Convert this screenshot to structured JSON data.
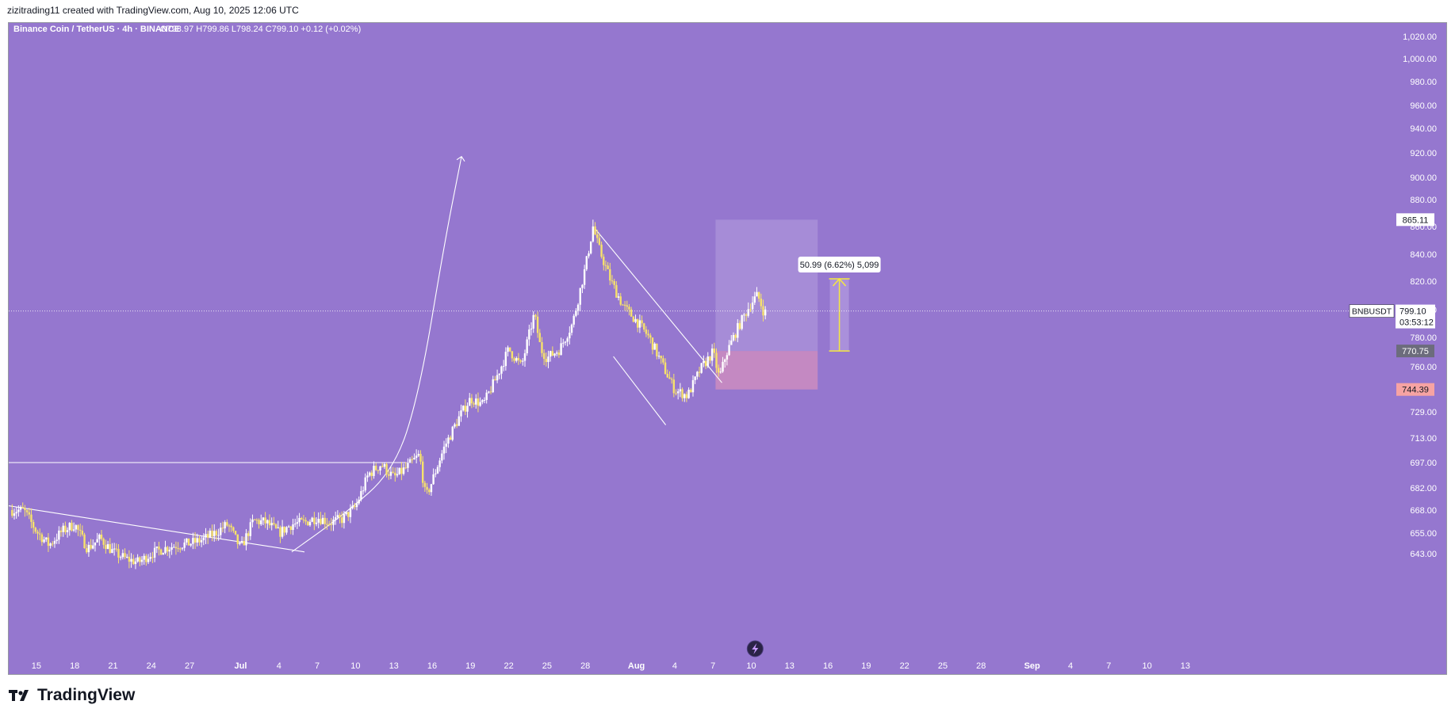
{
  "header": {
    "attribution": "zizitrading11 created with TradingView.com, Aug 10, 2025 12:06 UTC"
  },
  "colors": {
    "background": "#9577cf",
    "candle_up": "#ffffff",
    "candle_down": "#f7e26b",
    "projection_box": "#a98fd8",
    "profit_zone": "#b7a5e3",
    "stop_zone": "#c98bc0",
    "measure_arrow": "#f5e840",
    "stop_label": "#f7a3a3",
    "entry_label": "#6c6c7c"
  },
  "footer": {
    "brand": "TradingView",
    "logo_icon": "tradingview-logo-icon"
  },
  "chart_data": {
    "type": "candlestick",
    "symbol": "Binance Coin / TetherUS · 4h · BINANCE",
    "ohlc": {
      "O": "798.97",
      "H": "799.86",
      "L": "798.24",
      "C": "799.10",
      "change": "+0.12 (+0.02%)"
    },
    "y_axis_labels": [
      "1,020.00",
      "1,000.00",
      "980.00",
      "960.00",
      "940.00",
      "920.00",
      "900.00",
      "880.00",
      "860.00",
      "840.00",
      "820.00",
      "800.00",
      "780.00",
      "760.00",
      "729.00",
      "713.00",
      "697.00",
      "682.00",
      "668.00",
      "655.00",
      "643.00"
    ],
    "y_axis_values": [
      1020,
      1000,
      980,
      960,
      940,
      920,
      900,
      880,
      860,
      840,
      820,
      800,
      780,
      760,
      729,
      713,
      697,
      682,
      668,
      655,
      643
    ],
    "x_axis_labels": [
      "15",
      "18",
      "21",
      "24",
      "27",
      "Jul",
      "4",
      "7",
      "10",
      "13",
      "16",
      "19",
      "22",
      "25",
      "28",
      "Aug",
      "4",
      "7",
      "10",
      "13",
      "16",
      "19",
      "22",
      "25",
      "28",
      "Sep",
      "4",
      "7",
      "10",
      "13"
    ],
    "x_axis_days": [
      -16,
      -13,
      -10,
      -7,
      -4,
      0,
      3,
      6,
      9,
      12,
      15,
      18,
      21,
      24,
      27,
      31,
      34,
      37,
      40,
      43,
      46,
      49,
      52,
      55,
      58,
      62,
      65,
      68,
      71,
      74
    ],
    "price_path": [
      [
        -17,
        668
      ],
      [
        -16,
        656
      ],
      [
        -15,
        648
      ],
      [
        -14,
        656
      ],
      [
        -13,
        660
      ],
      [
        -12,
        646
      ],
      [
        -11,
        652
      ],
      [
        -10,
        644
      ],
      [
        -9,
        640
      ],
      [
        -8,
        638
      ],
      [
        -7,
        643
      ],
      [
        -6,
        646
      ],
      [
        -5,
        648
      ],
      [
        -4,
        649
      ],
      [
        -3,
        651
      ],
      [
        -2,
        655
      ],
      [
        -1,
        660
      ],
      [
        0,
        646
      ],
      [
        1,
        662
      ],
      [
        2,
        661
      ],
      [
        3,
        655
      ],
      [
        4,
        660
      ],
      [
        5,
        661
      ],
      [
        6,
        664
      ],
      [
        7,
        661
      ],
      [
        8,
        663
      ],
      [
        9,
        670
      ],
      [
        10,
        690
      ],
      [
        11,
        696
      ],
      [
        12,
        688
      ],
      [
        13,
        694
      ],
      [
        14,
        702
      ],
      [
        14.5,
        676
      ],
      [
        15,
        686
      ],
      [
        16,
        708
      ],
      [
        17,
        724
      ],
      [
        18,
        738
      ],
      [
        19,
        734
      ],
      [
        20,
        752
      ],
      [
        21,
        772
      ],
      [
        22,
        760
      ],
      [
        23,
        797
      ],
      [
        23.5,
        772
      ],
      [
        24,
        766
      ],
      [
        25,
        772
      ],
      [
        26,
        790
      ],
      [
        27,
        830
      ],
      [
        27.6,
        860
      ],
      [
        28,
        846
      ],
      [
        29,
        820
      ],
      [
        30,
        802
      ],
      [
        31,
        792
      ],
      [
        32,
        780
      ],
      [
        33,
        762
      ],
      [
        34,
        744
      ],
      [
        35,
        740
      ],
      [
        36,
        758
      ],
      [
        37,
        770
      ],
      [
        37.5,
        752
      ],
      [
        38,
        768
      ],
      [
        39,
        788
      ],
      [
        40,
        805
      ],
      [
        40.5,
        810
      ],
      [
        41,
        798
      ]
    ],
    "series": [
      {
        "name": "BNBUSDT",
        "last_value": "799.10",
        "countdown": "03:53:12"
      }
    ],
    "levels": [
      {
        "label": "865.11",
        "value": 865.11
      },
      {
        "label": "770.75",
        "value": 770.75
      },
      {
        "label": "744.39",
        "value": 744.39
      }
    ],
    "current_price": {
      "symbol_tag": "BNBUSDT",
      "value": "799.10",
      "timer": "03:53:12"
    },
    "position_tool": {
      "entry": 770.75,
      "target": 865.11,
      "stop": 744.39,
      "start_day": 37.2,
      "end_day": 45.2
    },
    "measure": {
      "label": "50.99 (6.62%) 5,099",
      "from": 770.75,
      "to": 821.74,
      "day": 46.9
    },
    "trendlines": [
      {
        "name": "horizontal-resistance",
        "points": [
          [
            -20,
            697
          ],
          [
            13,
            697
          ]
        ]
      },
      {
        "name": "descending-support",
        "points": [
          [
            -20,
            673
          ],
          [
            5,
            644
          ]
        ]
      },
      {
        "name": "curved-projection",
        "points": [
          [
            4,
            644
          ],
          [
            8,
            665
          ],
          [
            12,
            692
          ],
          [
            14,
            742
          ],
          [
            16,
            850
          ],
          [
            17.3,
            917
          ]
        ]
      },
      {
        "name": "falling-wedge-upper",
        "points": [
          [
            27.8,
            858
          ],
          [
            37.7,
            749
          ]
        ]
      },
      {
        "name": "falling-wedge-lower",
        "points": [
          [
            29.2,
            767
          ],
          [
            33.3,
            721
          ]
        ]
      }
    ],
    "grid": false,
    "event_icon": "lightning-icon"
  }
}
